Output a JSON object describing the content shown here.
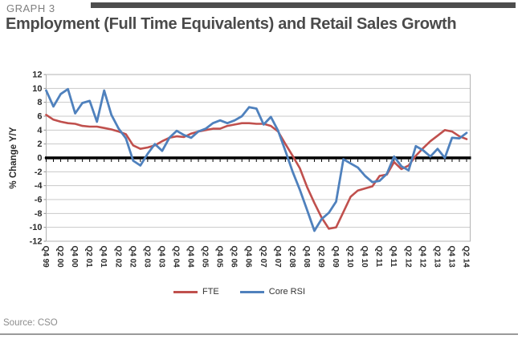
{
  "header": {
    "graph_label": "GRAPH 3",
    "title": "Employment (Full Time Equivalents) and Retail Sales Growth",
    "bar_color": "#4D4D4D"
  },
  "source": {
    "text": "Source: CSO"
  },
  "chart_data": {
    "type": "line",
    "title": "Employment (Full Time Equivalents) and Retail Sales Growth",
    "xlabel": "",
    "ylabel": "% Change Y/Y",
    "ylim": [
      -12,
      12
    ],
    "ytick_step": 2,
    "y_ticks": [
      12,
      10,
      8,
      6,
      4,
      2,
      0,
      -2,
      -4,
      -6,
      -8,
      -10,
      -12
    ],
    "grid": true,
    "zero_axis_emphasized": true,
    "legend_position": "bottom",
    "n_points": 59,
    "points_per_label": 2,
    "x_tick_labels": [
      "Q4 99",
      "Q2 00",
      "Q4 00",
      "Q2 01",
      "Q4 01",
      "Q2 02",
      "Q4 02",
      "Q2 03",
      "Q4 03",
      "Q2 04",
      "Q4 04",
      "Q2 05",
      "Q4 05",
      "Q2 06",
      "Q4 06",
      "Q2 07",
      "Q4 07",
      "Q2 08",
      "Q4 08",
      "Q2 09",
      "Q4 09",
      "Q2 10",
      "Q4 10",
      "Q2 11",
      "Q4 11",
      "Q2 12",
      "Q4 12",
      "Q2 13",
      "Q4 13",
      "Q2 14"
    ],
    "series": [
      {
        "name": "FTE",
        "color": "#C0504D",
        "values": [
          6.2,
          5.5,
          5.2,
          5.0,
          4.9,
          4.6,
          4.5,
          4.5,
          4.3,
          4.1,
          3.8,
          3.4,
          1.8,
          1.3,
          1.5,
          1.8,
          2.4,
          2.9,
          3.1,
          3.0,
          3.5,
          3.8,
          4.0,
          4.2,
          4.2,
          4.6,
          4.8,
          5.0,
          5.0,
          4.9,
          4.9,
          4.6,
          3.8,
          2.0,
          0.3,
          -1.5,
          -4.2,
          -6.5,
          -8.6,
          -10.2,
          -10.0,
          -7.8,
          -5.6,
          -4.7,
          -4.4,
          -4.1,
          -2.6,
          -2.4,
          -0.6,
          -1.6,
          -1.1,
          0.3,
          1.4,
          2.4,
          3.2,
          4.0,
          3.8,
          3.1,
          2.7
        ]
      },
      {
        "name": "Core RSI",
        "color": "#4F81BD",
        "values": [
          9.7,
          7.4,
          9.2,
          9.9,
          6.4,
          7.9,
          8.2,
          5.2,
          9.7,
          6.2,
          4.2,
          2.8,
          -0.4,
          -1.1,
          0.6,
          2.0,
          1.0,
          2.9,
          3.9,
          3.3,
          2.9,
          3.8,
          4.2,
          5.0,
          5.4,
          5.0,
          5.4,
          6.0,
          7.3,
          7.1,
          4.8,
          5.9,
          3.9,
          1.0,
          -2.0,
          -4.6,
          -7.5,
          -10.5,
          -8.8,
          -7.9,
          -6.3,
          -0.2,
          -0.8,
          -1.4,
          -2.6,
          -3.5,
          -3.3,
          -2.3,
          0.2,
          -1.2,
          -1.8,
          1.7,
          1.1,
          0.2,
          1.3,
          0.0,
          2.9,
          2.8,
          3.6
        ]
      }
    ]
  }
}
